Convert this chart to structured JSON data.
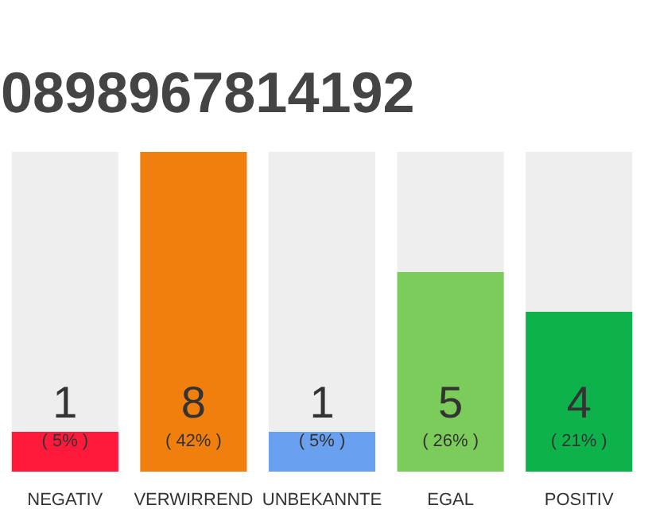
{
  "chart_data": {
    "type": "bar",
    "title": "0898967814192",
    "categories": [
      "NEGATIV",
      "VERWIRREND",
      "UNBEKANNTE",
      "EGAL",
      "POSITIV"
    ],
    "stacked": true,
    "series": [
      {
        "colors": [
          "#ff1a3c",
          "#f07f0d",
          "#6aa0f0",
          "#7ccc5c",
          "#0db34a"
        ],
        "values": [
          1,
          8,
          1,
          5,
          4
        ],
        "value_labels": [
          "1",
          "8",
          "1",
          "5",
          "4"
        ]
      },
      {
        "color": "#eeeeee",
        "values": [
          7,
          0,
          7,
          3,
          4
        ]
      }
    ],
    "ylim": [
      0,
      8
    ],
    "tick_labels": "x",
    "annotations": [
      "( 5% )",
      "( 42% )",
      "( 5% )",
      "( 26% )",
      "( 21% )"
    ]
  }
}
